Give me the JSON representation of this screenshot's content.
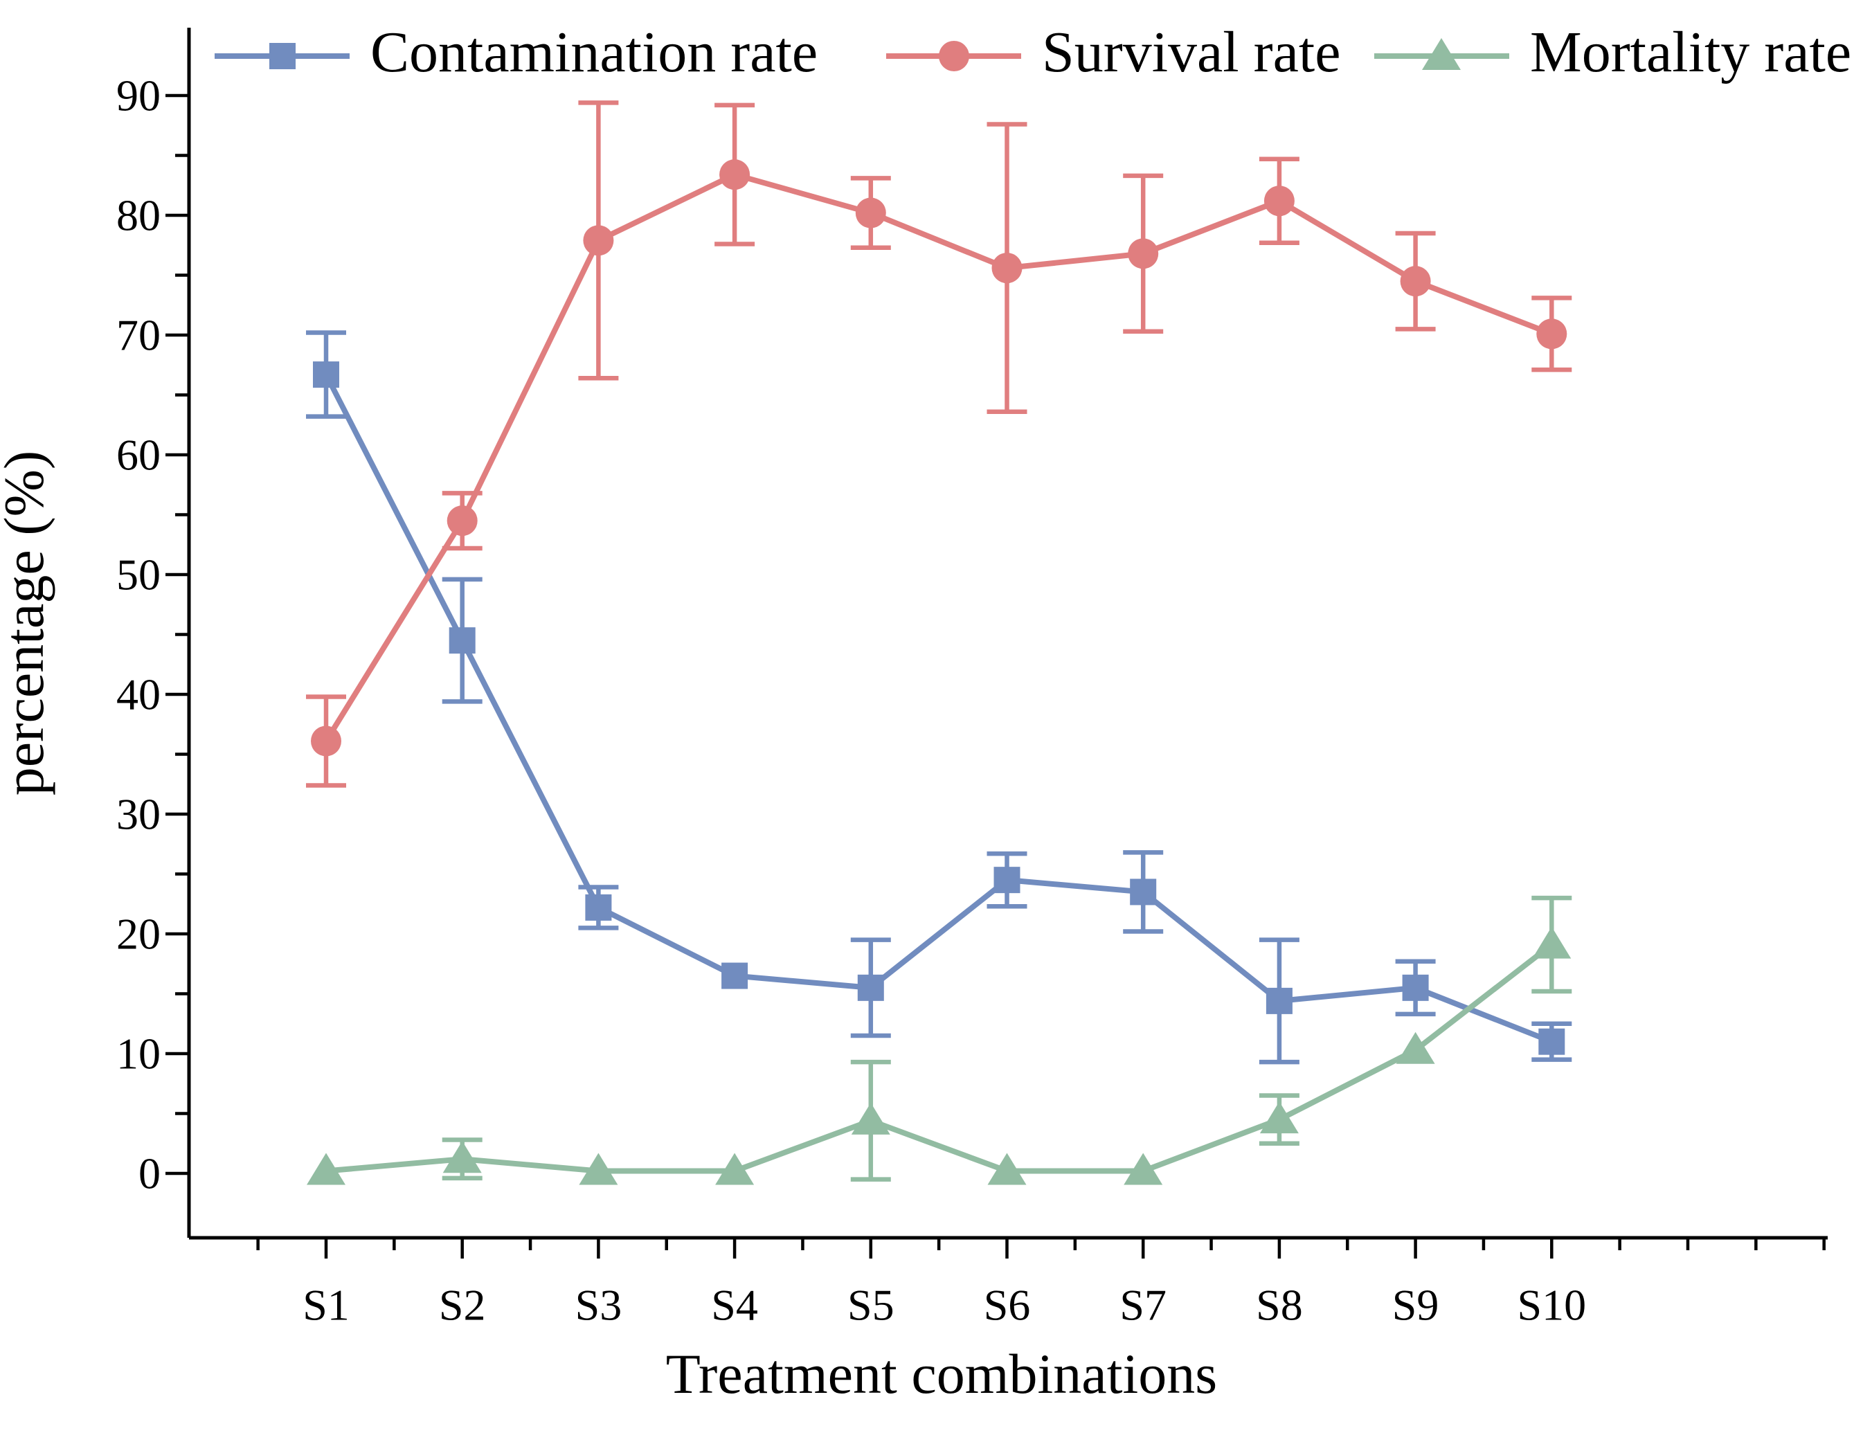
{
  "chart_data": {
    "type": "line",
    "title": "",
    "xlabel": "Treatment combinations",
    "ylabel": "percentage (%)",
    "categories": [
      "S1",
      "S2",
      "S3",
      "S4",
      "S5",
      "S6",
      "S7",
      "S8",
      "S9",
      "S10"
    ],
    "y_ticks": [
      0,
      10,
      20,
      30,
      40,
      50,
      60,
      70,
      80,
      90
    ],
    "ylim": [
      -5.5,
      95
    ],
    "grid": false,
    "legend_position": "top",
    "error_bars": true,
    "axis_color": "#000000",
    "series": [
      {
        "name": "Contamination rate",
        "marker": "square",
        "color": "#718CBF",
        "values": [
          66.7,
          44.5,
          22.2,
          16.5,
          15.5,
          24.5,
          23.5,
          14.4,
          15.5,
          11.0
        ],
        "errors": [
          3.5,
          5.1,
          1.7,
          0.4,
          4.0,
          2.2,
          3.3,
          5.1,
          2.2,
          1.5
        ]
      },
      {
        "name": "Survival rate",
        "marker": "circle",
        "color": "#E07E7F",
        "values": [
          36.1,
          54.5,
          77.9,
          83.4,
          80.2,
          75.6,
          76.8,
          81.2,
          74.5,
          70.1
        ],
        "errors": [
          3.7,
          2.3,
          11.5,
          5.8,
          2.9,
          12.0,
          6.5,
          3.5,
          4.0,
          3.0
        ]
      },
      {
        "name": "Mortality rate",
        "marker": "triangle",
        "color": "#92BCA2",
        "values": [
          0.2,
          1.2,
          0.2,
          0.2,
          4.4,
          0.2,
          0.2,
          4.5,
          10.3,
          19.1
        ],
        "errors": [
          0,
          1.6,
          0,
          0,
          4.9,
          0,
          0,
          2.0,
          0,
          3.9
        ]
      }
    ]
  }
}
